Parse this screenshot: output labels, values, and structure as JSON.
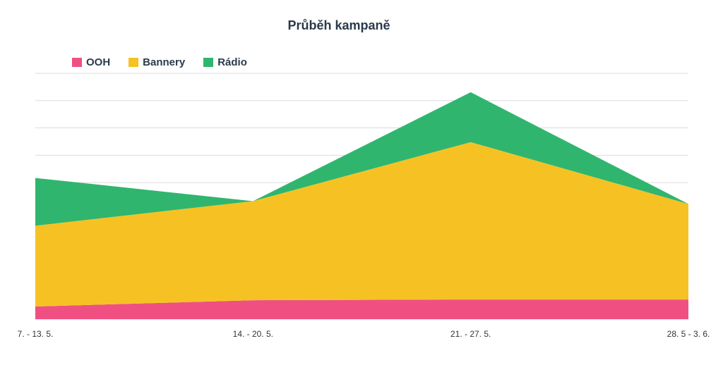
{
  "chart_data": {
    "type": "area",
    "stacked": true,
    "title": "Průběh kampaně",
    "categories": [
      "7. - 13. 5.",
      "14. - 20. 5.",
      "21. - 27. 5.",
      "28. 5 - 3. 6."
    ],
    "series": [
      {
        "name": "OOH",
        "color": "#ef5081",
        "values": [
          18,
          27,
          28,
          28
        ]
      },
      {
        "name": "Bannery",
        "color": "#f6c223",
        "values": [
          115,
          141,
          224,
          136
        ]
      },
      {
        "name": "Rádio",
        "color": "#30b56f",
        "values": [
          68,
          0,
          71,
          0
        ]
      }
    ],
    "ylim": [
      0,
      350
    ],
    "gridlines": true,
    "legend_position": "top-left",
    "xlabel": "",
    "ylabel": ""
  }
}
